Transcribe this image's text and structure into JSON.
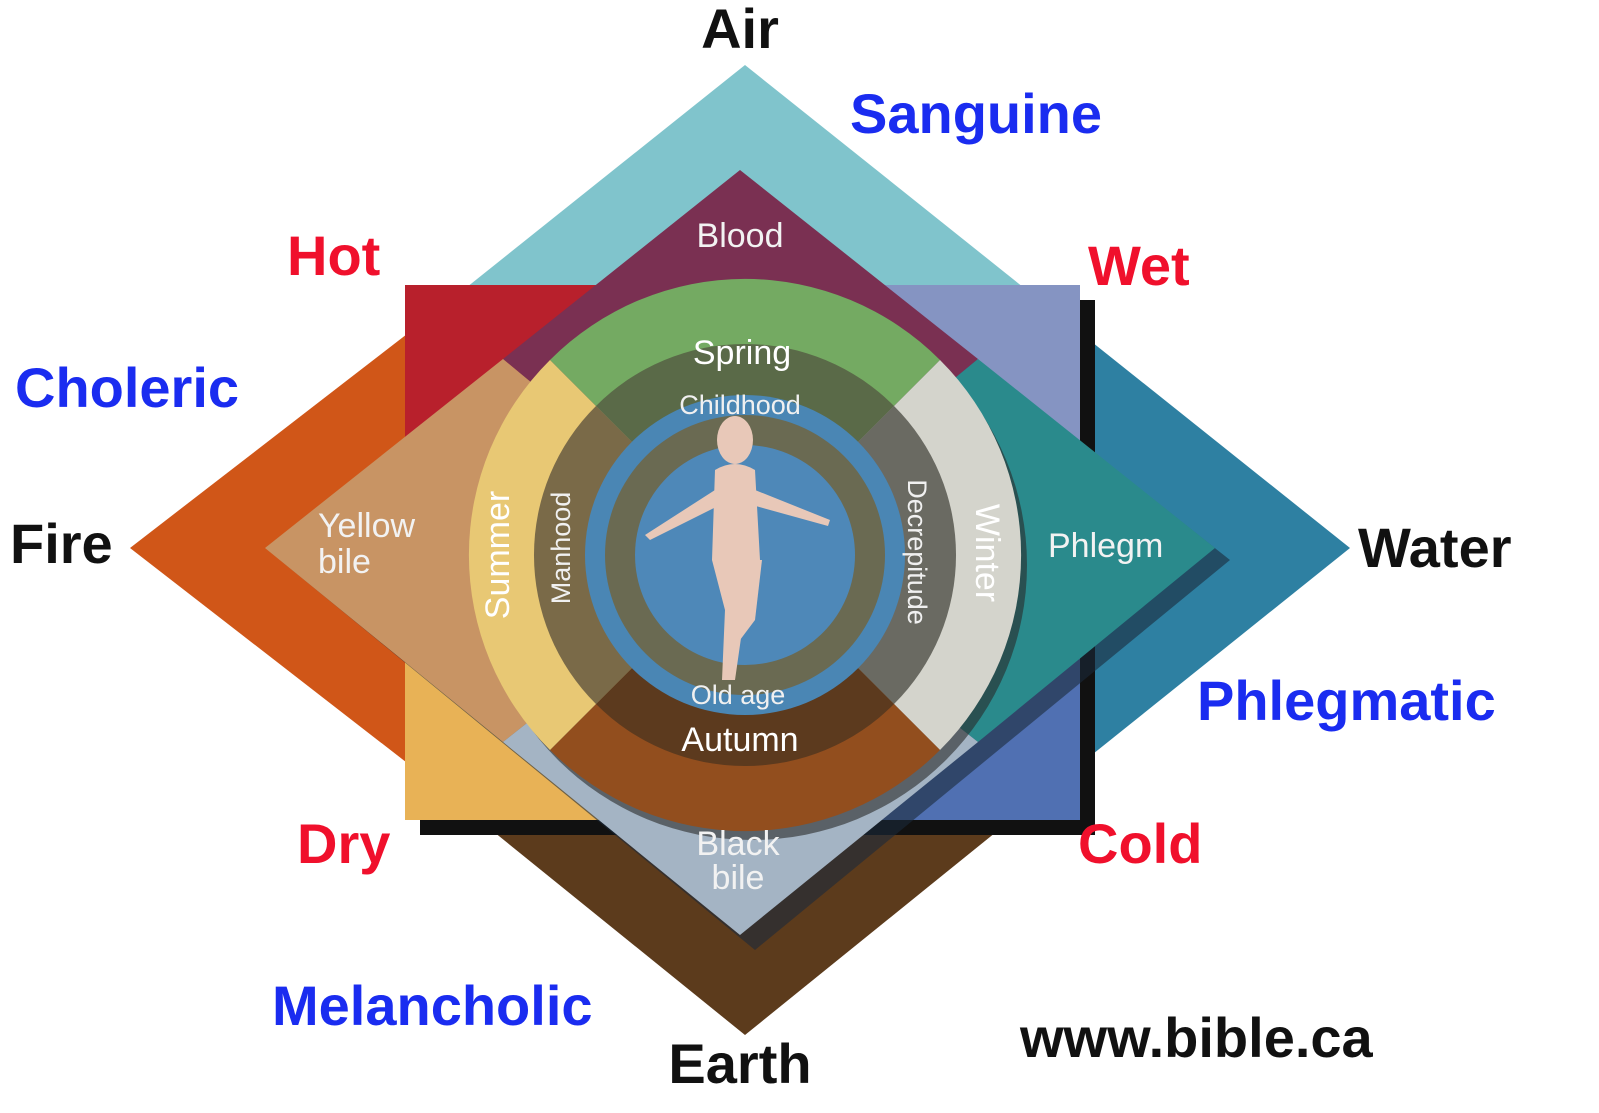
{
  "elements": {
    "air": "Air",
    "fire": "Fire",
    "water": "Water",
    "earth": "Earth"
  },
  "temperaments": {
    "sanguine": "Sanguine",
    "choleric": "Choleric",
    "phlegmatic": "Phlegmatic",
    "melancholic": "Melancholic"
  },
  "qualities": {
    "hot": "Hot",
    "wet": "Wet",
    "dry": "Dry",
    "cold": "Cold"
  },
  "humors": {
    "blood": "Blood",
    "yellow_bile": [
      "Yellow",
      "bile"
    ],
    "phlegm": "Phlegm",
    "black_bile": [
      "Black",
      "bile"
    ]
  },
  "seasons": {
    "spring": "Spring",
    "summer": "Summer",
    "winter": "Winter",
    "autumn": "Autumn"
  },
  "ages": {
    "childhood": "Childhood",
    "manhood": "Manhood",
    "decrepitude": "Decrepitude",
    "old_age": "Old age"
  },
  "footer": {
    "url": "www.bible.ca"
  }
}
